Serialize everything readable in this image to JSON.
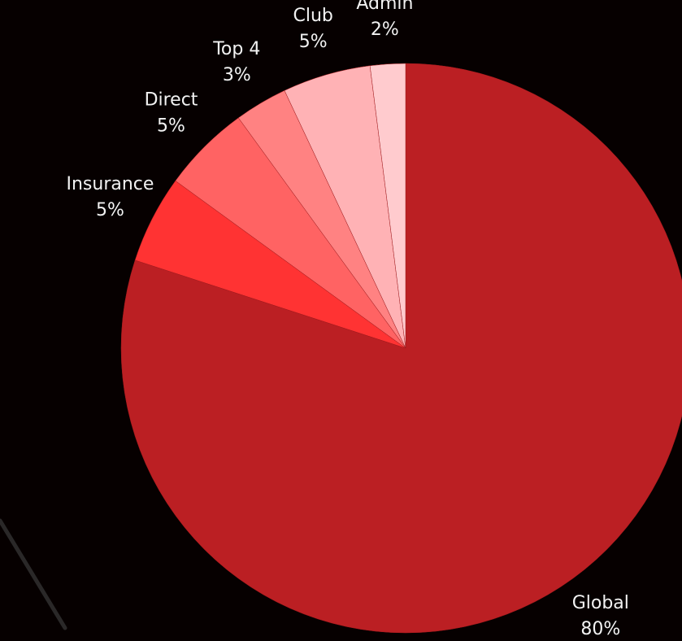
{
  "chart_data": {
    "type": "pie",
    "categories": [
      "Global",
      "Insurance",
      "Direct",
      "Top 4",
      "Club",
      "Admin"
    ],
    "values": [
      80,
      5,
      5,
      3,
      5,
      2
    ],
    "value_labels": [
      "80%",
      "5%",
      "5%",
      "3%",
      "5%",
      "2%"
    ],
    "colors": [
      "#bb1f23",
      "#ff3333",
      "#ff6363",
      "#ff8282",
      "#ffb2b5",
      "#ffcbce"
    ]
  }
}
